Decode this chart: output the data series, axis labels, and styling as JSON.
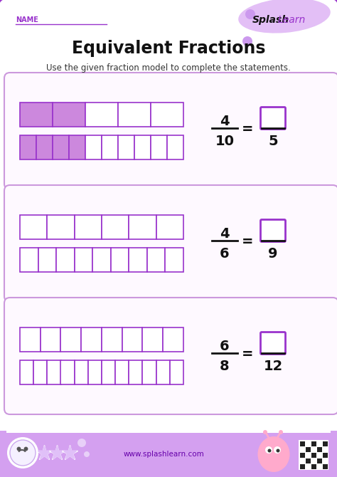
{
  "title": "Equivalent Fractions",
  "subtitle": "Use the given fraction model to complete the statements.",
  "name_label": "NAME",
  "border_color": "#9933cc",
  "purple_fill": "#cc88dd",
  "purple_border": "#9933cc",
  "panel_border": "#cc99dd",
  "panel_bg": "#fdf8ff",
  "problems": [
    {
      "row1_total": 5,
      "row1_filled": 2,
      "row2_total": 10,
      "row2_filled": 4,
      "frac_num": "4",
      "frac_den": "10",
      "eq_den": "5",
      "show_filled": true
    },
    {
      "row1_total": 6,
      "row1_filled": 0,
      "row2_total": 9,
      "row2_filled": 0,
      "frac_num": "4",
      "frac_den": "6",
      "eq_den": "9",
      "show_filled": false
    },
    {
      "row1_total": 8,
      "row1_filled": 0,
      "row2_total": 12,
      "row2_filled": 0,
      "frac_num": "6",
      "frac_den": "8",
      "eq_den": "12",
      "show_filled": false
    }
  ],
  "splash_bold": "Splash",
  "splash_normal": "Learn",
  "website": "www.splashlearn.com",
  "fig_w": 4.74,
  "fig_h": 6.7,
  "dpi": 100
}
